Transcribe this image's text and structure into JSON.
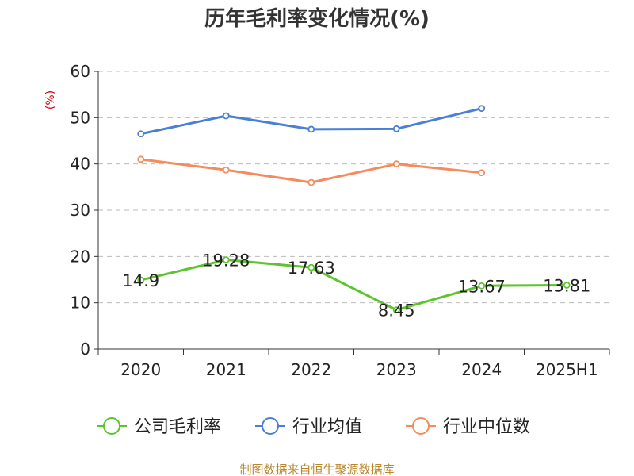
{
  "title": "历年毛利率变化情况(%)",
  "unit_label": "(%)",
  "source": "制图数据来自恒生聚源数据库",
  "chart_data": {
    "type": "line",
    "title": "历年毛利率变化情况(%)",
    "ylabel": "(%)",
    "categories": [
      "2020",
      "2021",
      "2022",
      "2023",
      "2024",
      "2025H1"
    ],
    "ylim": [
      0,
      60
    ],
    "yticks": [
      0,
      10,
      20,
      30,
      40,
      50,
      60
    ],
    "grid": true,
    "legend_position": "bottom",
    "series": [
      {
        "name": "公司毛利率",
        "color": "#5cc42d",
        "values": [
          14.9,
          19.28,
          17.63,
          8.45,
          13.67,
          13.81
        ],
        "labels": [
          "14.9",
          "19.28",
          "17.63",
          "8.45",
          "13.67",
          "13.81"
        ]
      },
      {
        "name": "行业均值",
        "color": "#4a7fd8",
        "values": [
          46.5,
          50.4,
          47.5,
          47.6,
          52.0,
          null
        ]
      },
      {
        "name": "行业中位数",
        "color": "#f58b5c",
        "values": [
          41.0,
          38.7,
          36.0,
          40.0,
          38.1,
          null
        ]
      }
    ]
  }
}
